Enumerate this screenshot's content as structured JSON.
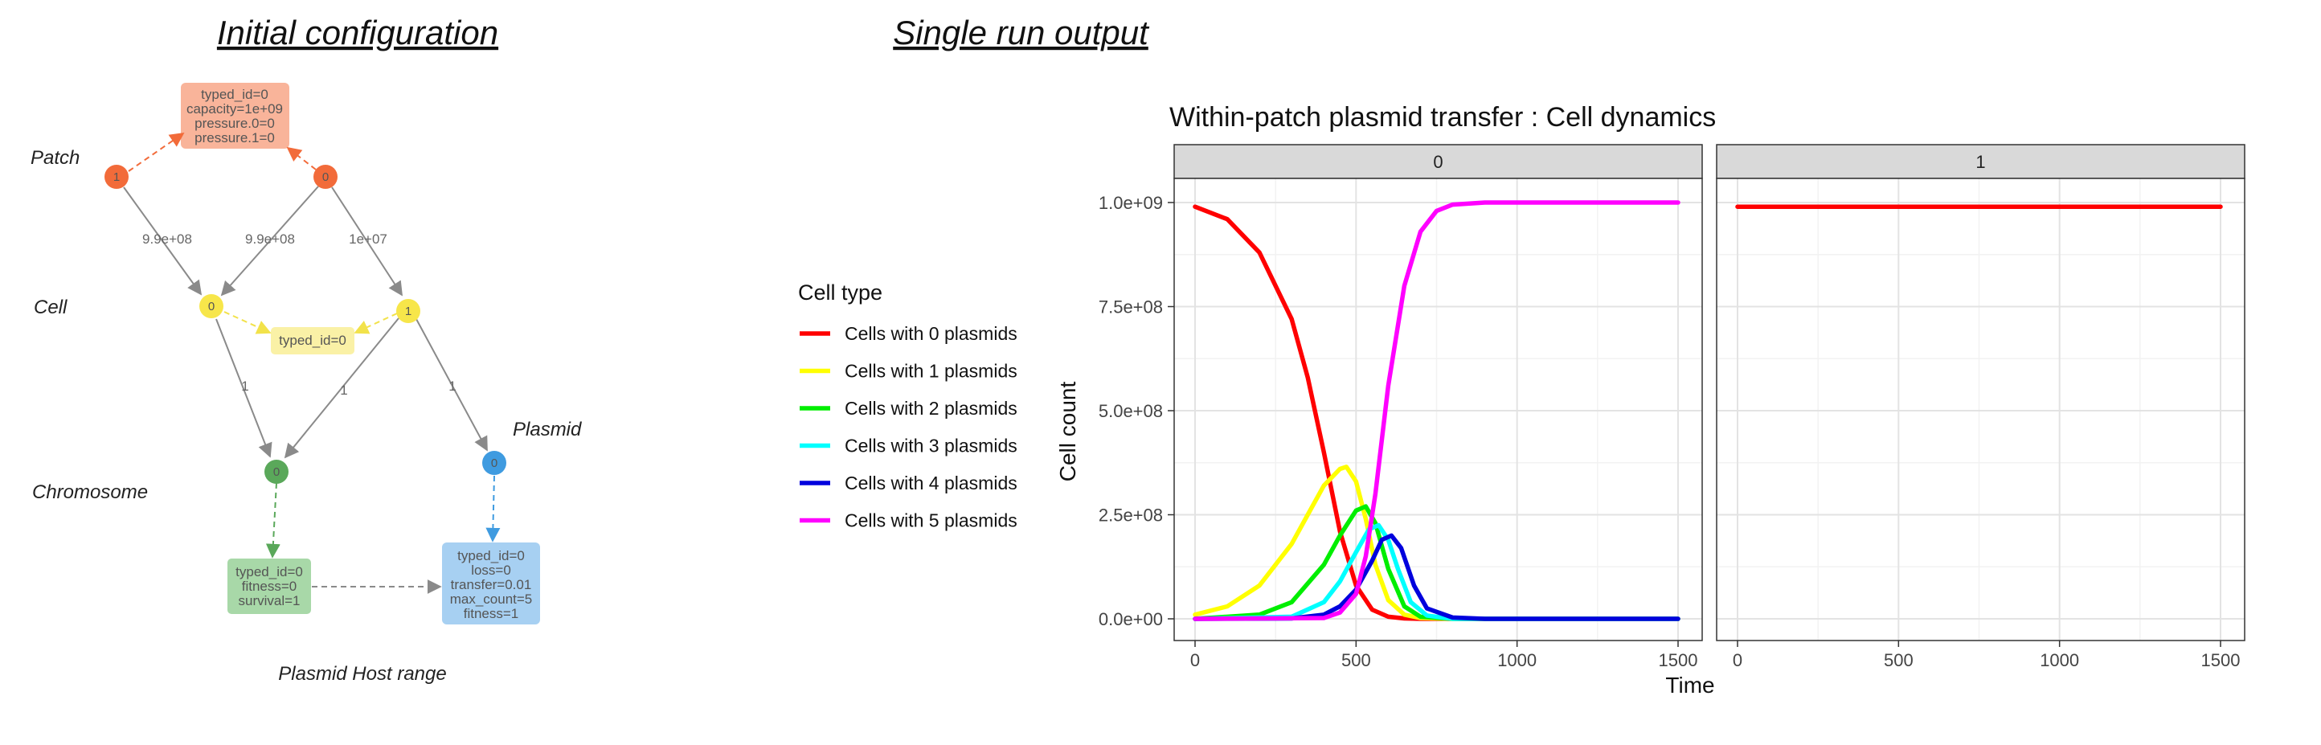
{
  "left_panel": {
    "title": "Initial configuration",
    "caption": "Plasmid Host range",
    "layer_labels": {
      "patch": "Patch",
      "cell": "Cell",
      "chromosome": "Chromosome",
      "plasmid": "Plasmid"
    },
    "nodes": {
      "patch_1": "1",
      "patch_0": "0",
      "cell_0": "0",
      "cell_1": "1",
      "chromosome_0": "0",
      "plasmid_0": "0"
    },
    "edge_labels": {
      "p1_c0": "9.9e+08",
      "p0_c0": "9.9e+08",
      "p0_c1": "1e+07",
      "c0_chr": "1",
      "c1_chr": "1",
      "c1_pl": "1"
    },
    "boxes": {
      "patch_type": [
        "typed_id=0",
        "capacity=1e+09",
        "pressure.0=0",
        "pressure.1=0"
      ],
      "cell_type": [
        "typed_id=0"
      ],
      "chromosome_type": [
        "typed_id=0",
        "fitness=0",
        "survival=1"
      ],
      "plasmid_type": [
        "typed_id=0",
        "loss=0",
        "transfer=0.01",
        "max_count=5",
        "fitness=1"
      ]
    },
    "colors": {
      "patch": "#f26b3a",
      "patch_box": "#f9b49a",
      "cell": "#f7e64a",
      "cell_box": "#faf1a6",
      "chromosome": "#5aa85a",
      "chromosome_box": "#a8d8a8",
      "plasmid": "#3f9be0",
      "plasmid_box": "#a7d0f2",
      "edge": "#8a8a8a"
    }
  },
  "right_panel": {
    "title": "Single run output"
  },
  "chart_data": {
    "type": "line",
    "title": "Within-patch plasmid transfer : Cell dynamics",
    "xlabel": "Time",
    "ylabel": "Cell count",
    "xlim": [
      0,
      1500
    ],
    "ylim": [
      0,
      1000000000
    ],
    "x_ticks": [
      "0",
      "500",
      "1000",
      "1500"
    ],
    "x_tick_values": [
      0,
      500,
      1000,
      1500
    ],
    "y_ticks": [
      "0.0e+00",
      "2.5e+08",
      "5.0e+08",
      "7.5e+08",
      "1.0e+09"
    ],
    "y_tick_values": [
      0,
      250000000,
      500000000,
      750000000,
      1000000000
    ],
    "grid": true,
    "legend_title": "Cell type",
    "legend_position": "left",
    "facets": [
      {
        "label": "0",
        "series": [
          {
            "name": "Cells with 0 plasmids",
            "color": "#ff0000",
            "x": [
              0,
              100,
              200,
              300,
              350,
              400,
              450,
              500,
              550,
              600,
              650,
              700,
              800,
              1000,
              1500
            ],
            "y": [
              990000000,
              960000000,
              880000000,
              720000000,
              580000000,
              400000000,
              210000000,
              80000000,
              22000000,
              5000000,
              1000000,
              0,
              0,
              0,
              0
            ]
          },
          {
            "name": "Cells with 1 plasmids",
            "color": "#ffff00",
            "x": [
              0,
              100,
              200,
              300,
              350,
              400,
              450,
              470,
              500,
              530,
              560,
              600,
              650,
              700,
              800,
              1000,
              1500
            ],
            "y": [
              10000000,
              30000000,
              80000000,
              180000000,
              250000000,
              320000000,
              360000000,
              365000000,
              330000000,
              240000000,
              130000000,
              45000000,
              10000000,
              2000000,
              0,
              0,
              0
            ]
          },
          {
            "name": "Cells with 2 plasmids",
            "color": "#00ee00",
            "x": [
              0,
              200,
              300,
              400,
              450,
              500,
              530,
              560,
              600,
              650,
              700,
              800,
              1000,
              1500
            ],
            "y": [
              0,
              10000000,
              40000000,
              130000000,
              200000000,
              260000000,
              270000000,
              230000000,
              120000000,
              30000000,
              5000000,
              0,
              0,
              0
            ]
          },
          {
            "name": "Cells with 3 plasmids",
            "color": "#00ffff",
            "x": [
              0,
              300,
              400,
              450,
              500,
              540,
              570,
              600,
              630,
              670,
              720,
              800,
              1000,
              1500
            ],
            "y": [
              0,
              5000000,
              40000000,
              90000000,
              160000000,
              215000000,
              225000000,
              190000000,
              120000000,
              40000000,
              8000000,
              0,
              0,
              0
            ]
          },
          {
            "name": "Cells with 4 plasmids",
            "color": "#0000dd",
            "x": [
              0,
              300,
              400,
              450,
              500,
              550,
              580,
              610,
              640,
              680,
              720,
              800,
              900,
              1000,
              1500
            ],
            "y": [
              0,
              1000000,
              10000000,
              30000000,
              70000000,
              140000000,
              190000000,
              200000000,
              170000000,
              80000000,
              25000000,
              3000000,
              0,
              0,
              0
            ]
          },
          {
            "name": "Cells with 5 plasmids",
            "color": "#ff00ff",
            "x": [
              0,
              400,
              450,
              500,
              530,
              560,
              600,
              650,
              700,
              750,
              800,
              900,
              1000,
              1500
            ],
            "y": [
              0,
              2000000,
              15000000,
              60000000,
              150000000,
              300000000,
              560000000,
              800000000,
              930000000,
              980000000,
              995000000,
              1000000000,
              1000000000,
              1000000000
            ]
          }
        ]
      },
      {
        "label": "1",
        "series": [
          {
            "name": "Cells with 0 plasmids",
            "color": "#ff0000",
            "x": [
              0,
              1500
            ],
            "y": [
              990000000,
              990000000
            ]
          }
        ]
      }
    ]
  }
}
